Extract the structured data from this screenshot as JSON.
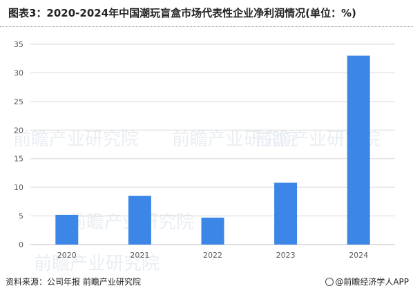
{
  "chart_data": {
    "type": "bar",
    "title": "图表3：2020-2024年中国潮玩盲盒市场代表性企业净利润情况(单位：%)",
    "categories": [
      "2020",
      "2021",
      "2022",
      "2023",
      "2024"
    ],
    "values": [
      5.2,
      8.5,
      4.7,
      10.8,
      33.0
    ],
    "ylim": [
      0,
      35
    ],
    "yticks": [
      0,
      5,
      10,
      15,
      20,
      25,
      30,
      35
    ],
    "grid": true,
    "bar_color": "#3b86e6",
    "legend": "none"
  },
  "footer": {
    "source": "资料来源：公司年报 前瞻产业研究院",
    "brand": "@前瞻经济学人APP"
  },
  "watermark": "前瞻产业研究院"
}
